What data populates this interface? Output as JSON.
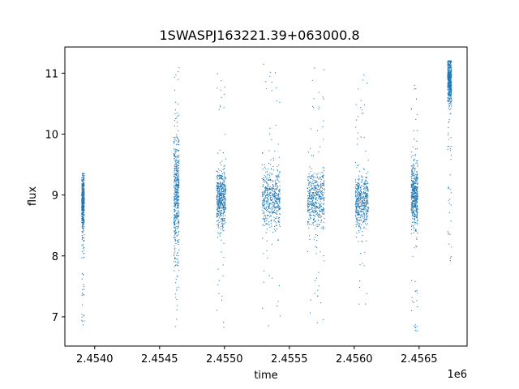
{
  "chart_data": {
    "type": "scatter",
    "title": "1SWASPJ163221.39+063000.8",
    "xlabel": "time",
    "ylabel": "flux",
    "offset_label": "1e6",
    "xlim": [
      2453770,
      2456870
    ],
    "ylim": [
      6.52,
      11.43
    ],
    "grid": false,
    "legend": "none",
    "x_tick_values": [
      2454000,
      2454500,
      2455000,
      2455500,
      2456000,
      2456500
    ],
    "x_ticks": [
      "2.4540",
      "2.4545",
      "2.4550",
      "2.4555",
      "2.4560",
      "2.4565"
    ],
    "y_tick_values": [
      7,
      8,
      9,
      10,
      11
    ],
    "y_ticks": [
      "7",
      "8",
      "9",
      "10",
      "11"
    ],
    "marker_color": "#1f77b4",
    "observing_seasons": [
      {
        "x_range": [
          2453900,
          2453920
        ],
        "flux_center": 8.9,
        "flux_spread": 0.25,
        "flux_min": 6.72,
        "flux_max": 9.35
      },
      {
        "x_range": [
          2454610,
          2454650
        ],
        "flux_center": 9.0,
        "flux_spread": 0.55,
        "flux_min": 6.75,
        "flux_max": 11.15
      },
      {
        "x_range": [
          2454940,
          2455010
        ],
        "flux_center": 8.95,
        "flux_spread": 0.22,
        "flux_min": 6.75,
        "flux_max": 11.0
      },
      {
        "x_range": [
          2455290,
          2455430
        ],
        "flux_center": 8.95,
        "flux_spread": 0.26,
        "flux_min": 6.72,
        "flux_max": 11.15
      },
      {
        "x_range": [
          2455640,
          2455770
        ],
        "flux_center": 8.92,
        "flux_spread": 0.22,
        "flux_min": 6.85,
        "flux_max": 11.15
      },
      {
        "x_range": [
          2456010,
          2456110
        ],
        "flux_center": 8.92,
        "flux_spread": 0.22,
        "flux_min": 7.0,
        "flux_max": 11.0
      },
      {
        "x_range": [
          2456440,
          2456490
        ],
        "flux_center": 9.0,
        "flux_spread": 0.25,
        "flux_min": 6.75,
        "flux_max": 10.85
      },
      {
        "x_range": [
          2456720,
          2456750
        ],
        "flux_center": 10.9,
        "flux_spread": 0.2,
        "flux_min": 7.7,
        "flux_max": 11.2
      }
    ]
  }
}
